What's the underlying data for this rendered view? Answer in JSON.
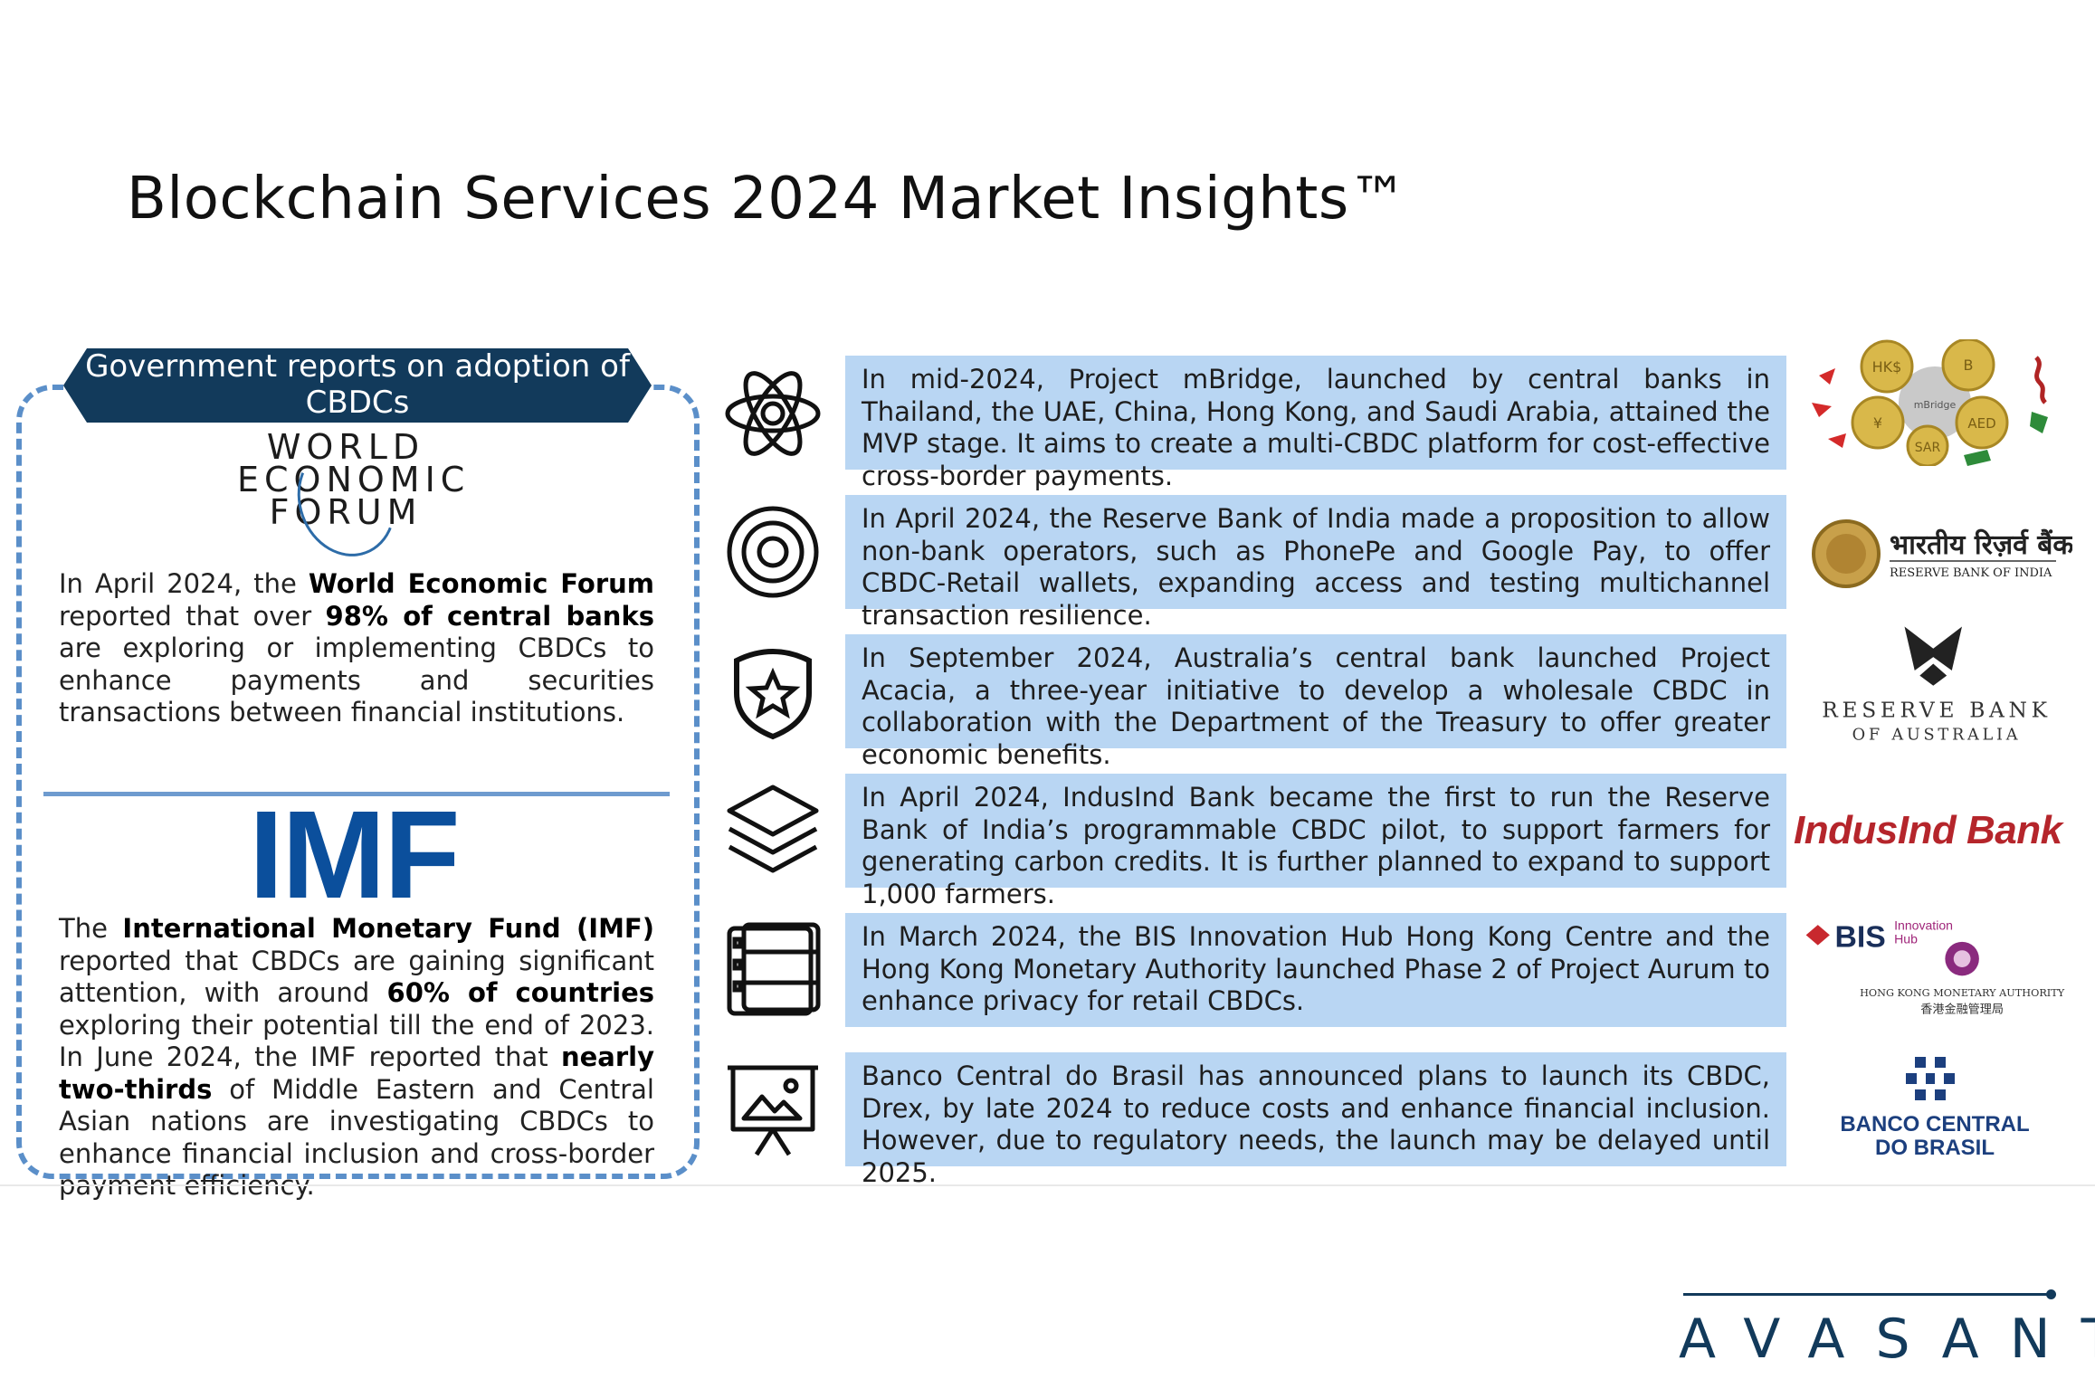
{
  "page": {
    "title": "Blockchain Services 2024 Market Insights™"
  },
  "left_panel": {
    "banner": "Government reports on adoption of CBDCs",
    "wef_logo_lines": [
      "WORLD",
      "ECONOMIC",
      "FORUM"
    ],
    "imf_logo": "IMF",
    "paragraph1": {
      "t1": "In April 2024, the ",
      "b1": "World Economic Forum",
      "t2": " reported that over ",
      "b2": "98% of central banks",
      "t3": " are exploring or implementing CBDCs to enhance payments and securities transactions between financial institutions."
    },
    "paragraph2": {
      "t1": "The ",
      "b1": "International Monetary Fund (IMF)",
      "t2": " reported that CBDCs are gaining significant attention, with around ",
      "b2": "60% of countries",
      "t3": " exploring their potential till the end of 2023. In June 2024, the IMF reported that ",
      "b3": "nearly two-thirds",
      "t4": " of Middle Eastern and Central Asian nations are investigating CBDCs to enhance financial inclusion and cross-border payment efficiency."
    }
  },
  "rows": [
    {
      "icon": "atom-icon",
      "text": "In mid-2024, Project mBridge, launched by central banks in Thailand, the UAE, China, Hong Kong, and Saudi Arabia, attained the MVP stage. It aims to create a multi-CBDC platform for cost-effective cross-border payments.",
      "logo": "mbridge-coins-logo",
      "coin_labels": [
        "HK$",
        "B",
        "¥",
        "AED",
        "SAR",
        "mBridge"
      ]
    },
    {
      "icon": "target-icon",
      "text": "In April 2024, the Reserve Bank of India made a proposition to allow non-bank operators, such as PhonePe and Google Pay, to offer CBDC-Retail wallets, expanding access and testing multichannel transaction resilience.",
      "logo": "rbi-logo",
      "logo_text": [
        "भारतीय रिज़र्व बैंक",
        "RESERVE BANK OF INDIA"
      ]
    },
    {
      "icon": "shield-star-icon",
      "text": "In September 2024, Australia’s central bank launched Project Acacia, a three-year initiative to develop a wholesale CBDC in collaboration with the Department of the Treasury to offer greater economic benefits.",
      "logo": "rba-logo",
      "logo_text": [
        "RESERVE BANK",
        "OF AUSTRALIA"
      ]
    },
    {
      "icon": "layers-icon",
      "text": "In April 2024, IndusInd Bank became the first to run the Reserve Bank of India’s programmable CBDC pilot, to support farmers for generating carbon credits. It is further planned to expand to support 1,000 farmers.",
      "logo": "indusind-logo",
      "logo_text": [
        "IndusInd Bank"
      ]
    },
    {
      "icon": "film-icon",
      "text": "In March 2024, the BIS Innovation Hub Hong Kong Centre and the Hong Kong Monetary Authority launched Phase 2 of Project Aurum to enhance privacy for retail CBDCs.",
      "logo": "bis-hkma-logo",
      "logo_text": [
        "BIS",
        "Innovation",
        "Hub",
        "HONG KONG MONETARY AUTHORITY",
        "香港金融管理局"
      ]
    },
    {
      "icon": "presentation-icon",
      "text": "Banco Central do Brasil has announced plans to launch its CBDC, Drex, by late 2024 to reduce costs and enhance financial inclusion. However, due to regulatory needs, the launch may be delayed until 2025.",
      "logo": "bcb-logo",
      "logo_text": [
        "BANCO CENTRAL",
        "DO BRASIL"
      ]
    }
  ],
  "footer": {
    "brand": "AVASANT"
  },
  "colors": {
    "accent_blue": "#b9d6f3",
    "navy": "#123a5b",
    "dashed_border": "#5b8fc9",
    "imf_blue": "#0b4f9c",
    "indusind_red": "#b5252b"
  }
}
